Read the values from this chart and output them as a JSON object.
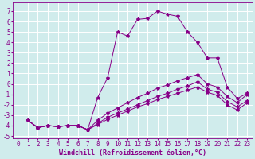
{
  "bg_color": "#d0ecec",
  "grid_color": "#b8dada",
  "line_color": "#880088",
  "marker": "*",
  "marker_size": 3,
  "xlabel": "Windchill (Refroidissement éolien,°C)",
  "xlabel_fontsize": 6,
  "tick_fontsize": 5.5,
  "xlim": [
    -0.5,
    23.5
  ],
  "ylim": [
    -5.2,
    7.8
  ],
  "xticks": [
    0,
    1,
    2,
    3,
    4,
    5,
    6,
    7,
    8,
    9,
    10,
    11,
    12,
    13,
    14,
    15,
    16,
    17,
    18,
    19,
    20,
    21,
    22,
    23
  ],
  "yticks": [
    -5,
    -4,
    -3,
    -2,
    -1,
    0,
    1,
    2,
    3,
    4,
    5,
    6,
    7
  ],
  "lines": [
    {
      "x": [
        1,
        2,
        3,
        4,
        5,
        6,
        7,
        8,
        9,
        10,
        11,
        12,
        13,
        14,
        15,
        16,
        17,
        18,
        19,
        20,
        21,
        22,
        23
      ],
      "y": [
        -3.5,
        -4.2,
        -4.0,
        -4.1,
        -4.0,
        -4.0,
        -4.4,
        -1.3,
        0.6,
        5.0,
        4.6,
        6.2,
        6.3,
        7.0,
        6.7,
        6.5,
        5.0,
        4.0,
        2.5,
        2.5,
        -0.3,
        -1.4,
        -0.9
      ]
    },
    {
      "x": [
        1,
        2,
        3,
        4,
        5,
        6,
        7,
        8,
        9,
        10,
        11,
        12,
        13,
        14,
        15,
        16,
        17,
        18,
        19,
        20,
        21,
        22,
        23
      ],
      "y": [
        -3.5,
        -4.2,
        -4.0,
        -4.1,
        -4.0,
        -4.0,
        -4.4,
        -3.5,
        -2.8,
        -2.3,
        -1.8,
        -1.3,
        -0.9,
        -0.4,
        -0.1,
        0.3,
        0.6,
        0.9,
        0.0,
        -0.3,
        -1.2,
        -1.8,
        -1.0
      ]
    },
    {
      "x": [
        1,
        2,
        3,
        4,
        5,
        6,
        7,
        8,
        9,
        10,
        11,
        12,
        13,
        14,
        15,
        16,
        17,
        18,
        19,
        20,
        21,
        22,
        23
      ],
      "y": [
        -3.5,
        -4.2,
        -4.0,
        -4.1,
        -4.0,
        -4.0,
        -4.4,
        -3.8,
        -3.2,
        -2.8,
        -2.4,
        -2.0,
        -1.6,
        -1.2,
        -0.9,
        -0.5,
        -0.2,
        0.2,
        -0.5,
        -0.8,
        -1.7,
        -2.2,
        -1.6
      ]
    },
    {
      "x": [
        1,
        2,
        3,
        4,
        5,
        6,
        7,
        8,
        9,
        10,
        11,
        12,
        13,
        14,
        15,
        16,
        17,
        18,
        19,
        20,
        21,
        22,
        23
      ],
      "y": [
        -3.5,
        -4.2,
        -4.0,
        -4.1,
        -4.0,
        -4.0,
        -4.4,
        -3.9,
        -3.4,
        -3.0,
        -2.6,
        -2.2,
        -1.9,
        -1.5,
        -1.2,
        -0.9,
        -0.6,
        -0.3,
        -0.8,
        -1.1,
        -2.0,
        -2.5,
        -1.8
      ]
    }
  ]
}
